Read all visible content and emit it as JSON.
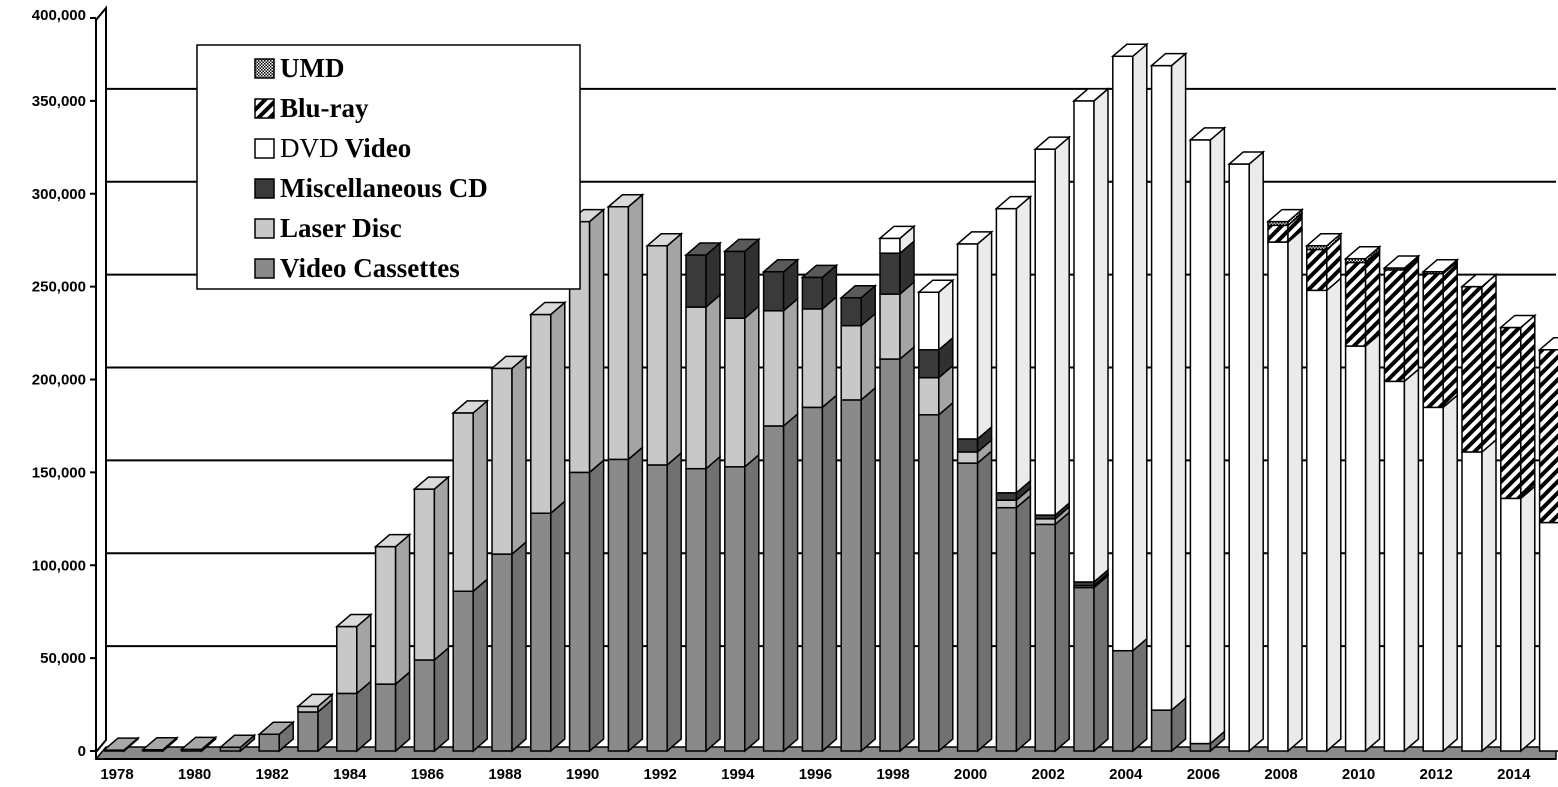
{
  "chart_data": {
    "type": "bar",
    "stacked": true,
    "three_d": true,
    "years": [
      1978,
      1979,
      1980,
      1981,
      1982,
      1983,
      1984,
      1985,
      1986,
      1987,
      1988,
      1989,
      1990,
      1991,
      1992,
      1993,
      1994,
      1995,
      1996,
      1997,
      1998,
      1999,
      2000,
      2001,
      2002,
      2003,
      2004,
      2005,
      2006,
      2007,
      2008,
      2009,
      2010,
      2011,
      2012,
      2013,
      2014,
      2015
    ],
    "x_tick_labels": [
      "1978",
      "1980",
      "1982",
      "1984",
      "1986",
      "1988",
      "1990",
      "1992",
      "1994",
      "1996",
      "1998",
      "2000",
      "2002",
      "2004",
      "2006",
      "2008",
      "2010",
      "2012",
      "2014"
    ],
    "ylim": [
      0,
      400000
    ],
    "y_ticks": [
      0,
      50000,
      100000,
      150000,
      200000,
      250000,
      300000,
      350000,
      400000
    ],
    "y_tick_labels": [
      "0",
      "50,000",
      "100,000",
      "150,000",
      "200,000",
      "250,000",
      "300,000",
      "350,000",
      "400,000"
    ],
    "grid": true,
    "legend_position": "top-left",
    "series": [
      {
        "name": "Video Cassettes",
        "color": "#8a8a8a",
        "pattern": "solid",
        "values": [
          500,
          700,
          900,
          2000,
          9000,
          21000,
          31000,
          36000,
          49000,
          86000,
          106000,
          128000,
          150000,
          157000,
          154000,
          152000,
          153000,
          175000,
          185000,
          189000,
          211000,
          181000,
          155000,
          131000,
          122000,
          88000,
          54000,
          22000,
          4000,
          0,
          0,
          0,
          0,
          0,
          0,
          0,
          0,
          0
        ]
      },
      {
        "name": "Laser Disc",
        "color": "#c8c8c8",
        "pattern": "solid",
        "values": [
          0,
          0,
          0,
          0,
          0,
          3000,
          36000,
          74000,
          92000,
          96000,
          100000,
          107000,
          135000,
          136000,
          118000,
          87000,
          80000,
          62000,
          53000,
          40000,
          35000,
          20000,
          6000,
          4000,
          3000,
          1000,
          0,
          0,
          0,
          0,
          0,
          0,
          0,
          0,
          0,
          0,
          0,
          0
        ]
      },
      {
        "name": "Miscellaneous CD",
        "color": "#3a3a3a",
        "pattern": "solid",
        "values": [
          0,
          0,
          0,
          0,
          0,
          0,
          0,
          0,
          0,
          0,
          0,
          0,
          0,
          0,
          0,
          28000,
          36000,
          21000,
          17000,
          15000,
          22000,
          15000,
          7000,
          4000,
          2000,
          2000,
          0,
          0,
          0,
          0,
          0,
          0,
          0,
          0,
          0,
          0,
          0,
          0
        ]
      },
      {
        "name": "DVD Video",
        "color": "#ffffff",
        "pattern": "solid",
        "values": [
          0,
          0,
          0,
          0,
          0,
          0,
          0,
          0,
          0,
          0,
          0,
          0,
          0,
          0,
          0,
          0,
          0,
          0,
          0,
          0,
          8000,
          31000,
          105000,
          153000,
          197000,
          259000,
          320000,
          347000,
          325000,
          316000,
          274000,
          248000,
          218000,
          199000,
          185000,
          161000,
          136000,
          123000
        ]
      },
      {
        "name": "Blu-ray",
        "color": "#ffffff",
        "pattern": "hatch",
        "values": [
          0,
          0,
          0,
          0,
          0,
          0,
          0,
          0,
          0,
          0,
          0,
          0,
          0,
          0,
          0,
          0,
          0,
          0,
          0,
          0,
          0,
          0,
          0,
          0,
          0,
          0,
          0,
          0,
          0,
          0,
          9000,
          22000,
          45000,
          60000,
          72000,
          89000,
          92000,
          93000
        ]
      },
      {
        "name": "UMD",
        "color": "#bdbdbd",
        "pattern": "dots",
        "values": [
          0,
          0,
          0,
          0,
          0,
          0,
          0,
          0,
          0,
          0,
          0,
          0,
          0,
          0,
          0,
          0,
          0,
          0,
          0,
          0,
          0,
          0,
          0,
          0,
          0,
          0,
          0,
          0,
          0,
          0,
          2000,
          2000,
          2000,
          1000,
          1000,
          0,
          0,
          0
        ]
      }
    ],
    "legend_entries": [
      "UMD",
      "Blu-ray",
      "DVD Video",
      "Miscellaneous CD",
      "Laser Disc",
      "Video Cassettes"
    ],
    "legend_text_parts": [
      {
        "serif_prefix": "",
        "bold": "UMD"
      },
      {
        "serif_prefix": "",
        "bold": "Blu-ray"
      },
      {
        "serif_prefix": "DVD",
        "bold": " Video"
      },
      {
        "serif_prefix": "",
        "bold": "Miscellaneous CD"
      },
      {
        "serif_prefix": "",
        "bold": "Laser Disc"
      },
      {
        "serif_prefix": "",
        "bold": "Video Cassettes"
      }
    ]
  }
}
